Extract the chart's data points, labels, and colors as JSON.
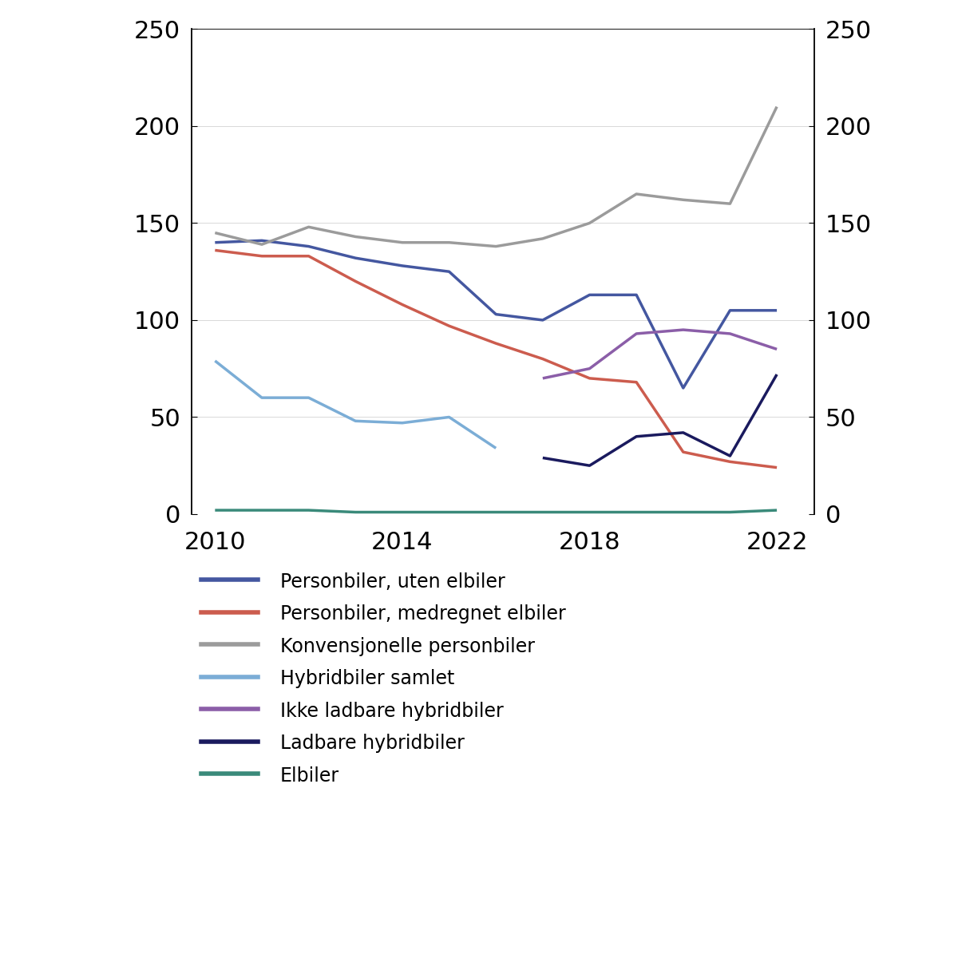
{
  "years": [
    2010,
    2011,
    2012,
    2013,
    2014,
    2015,
    2016,
    2017,
    2018,
    2019,
    2020,
    2021,
    2022
  ],
  "personbiler_uten": [
    140,
    141,
    138,
    132,
    128,
    125,
    103,
    100,
    113,
    113,
    65,
    105,
    105
  ],
  "personbiler_med": [
    136,
    133,
    133,
    120,
    108,
    97,
    88,
    80,
    70,
    68,
    32,
    27,
    24
  ],
  "konvensjonelle": [
    145,
    139,
    148,
    143,
    140,
    140,
    138,
    142,
    150,
    165,
    162,
    160,
    210
  ],
  "hybridbiler_samlet": [
    79,
    60,
    60,
    48,
    47,
    50,
    34,
    null,
    null,
    null,
    null,
    null,
    null
  ],
  "ikke_ladbare": [
    null,
    null,
    null,
    null,
    null,
    null,
    null,
    70,
    75,
    93,
    95,
    93,
    85
  ],
  "ladbare": [
    null,
    null,
    null,
    null,
    null,
    null,
    null,
    29,
    25,
    40,
    42,
    30,
    72
  ],
  "elbiler": [
    2,
    2,
    2,
    1,
    1,
    1,
    1,
    1,
    1,
    1,
    1,
    1,
    2
  ],
  "series_labels": [
    "Personbiler, uten elbiler",
    "Personbiler, medregnet elbiler",
    "Konvensjonelle personbiler",
    "Hybridbiler samlet",
    "Ikke ladbare hybridbiler",
    "Ladbare hybridbiler",
    "Elbiler"
  ],
  "series_colors": [
    "#4457a0",
    "#cc5c4e",
    "#9b9b9b",
    "#7badd6",
    "#8b5ea8",
    "#1a1a5e",
    "#3a8a7a"
  ],
  "linewidth": 2.5,
  "ylim": [
    0,
    250
  ],
  "yticks": [
    0,
    50,
    100,
    150,
    200,
    250
  ],
  "xticks": [
    2010,
    2014,
    2018,
    2022
  ],
  "background_color": "#ffffff",
  "legend_fontsize": 17,
  "tick_fontsize": 22,
  "legend_labelspacing": 0.7,
  "legend_handlelength": 3.0
}
